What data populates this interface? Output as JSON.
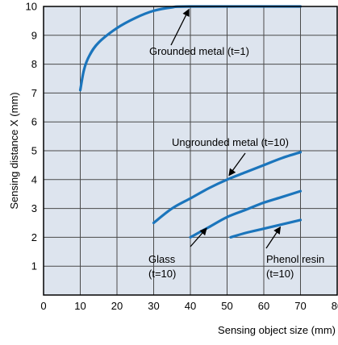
{
  "colors": {
    "plot_background": "#dde4ee",
    "grid": "#4a4a4a",
    "curve": "#1b75bc",
    "axis": "#000000",
    "text": "#000000"
  },
  "chart_data": {
    "type": "line",
    "title": "",
    "xlabel": "Sensing object size (mm)",
    "ylabel": "Sensing distance X (mm)",
    "xlim": [
      0,
      80
    ],
    "ylim": [
      0,
      10
    ],
    "x_ticks": [
      0,
      10,
      20,
      30,
      40,
      50,
      60,
      70,
      80
    ],
    "y_ticks": [
      1,
      2,
      3,
      4,
      5,
      6,
      7,
      8,
      9,
      10
    ],
    "grid": true,
    "series": [
      {
        "name": "Grounded metal (t=1)",
        "points": [
          [
            10,
            7.1
          ],
          [
            11,
            7.8
          ],
          [
            12.5,
            8.3
          ],
          [
            15,
            8.75
          ],
          [
            20,
            9.25
          ],
          [
            25,
            9.6
          ],
          [
            30,
            9.85
          ],
          [
            35,
            9.97
          ],
          [
            40,
            10.0
          ],
          [
            70,
            10.0
          ]
        ]
      },
      {
        "name": "Ungrounded metal (t=10)",
        "points": [
          [
            30,
            2.5
          ],
          [
            35,
            3.0
          ],
          [
            40,
            3.35
          ],
          [
            45,
            3.7
          ],
          [
            50,
            4.0
          ],
          [
            55,
            4.25
          ],
          [
            60,
            4.5
          ],
          [
            65,
            4.75
          ],
          [
            70,
            4.95
          ]
        ]
      },
      {
        "name": "Glass (t=10)",
        "points": [
          [
            40,
            2.0
          ],
          [
            45,
            2.35
          ],
          [
            50,
            2.7
          ],
          [
            55,
            2.95
          ],
          [
            60,
            3.2
          ],
          [
            65,
            3.4
          ],
          [
            70,
            3.6
          ]
        ]
      },
      {
        "name": "Phenol resin (t=10)",
        "points": [
          [
            51,
            2.0
          ],
          [
            55,
            2.15
          ],
          [
            60,
            2.3
          ],
          [
            65,
            2.45
          ],
          [
            70,
            2.6
          ]
        ]
      }
    ],
    "annotations": [
      {
        "lines": [
          "Grounded metal (t=1)"
        ],
        "target": [
          40,
          10.0
        ]
      },
      {
        "lines": [
          "Ungrounded metal (t=10)"
        ],
        "target": [
          50,
          4.05
        ]
      },
      {
        "lines": [
          "Glass",
          "(t=10)"
        ],
        "target": [
          45,
          2.4
        ]
      },
      {
        "lines": [
          "Phenol resin",
          "(t=10)"
        ],
        "target": [
          65,
          2.45
        ]
      }
    ]
  }
}
